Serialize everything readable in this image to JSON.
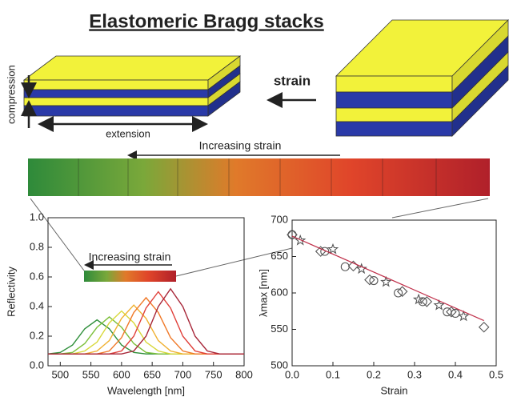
{
  "title": "Elastomeric Bragg stacks",
  "diagram": {
    "strain": "strain",
    "compression": "compression",
    "extension": "extension",
    "strip_label": "Increasing strain"
  },
  "chart_data": [
    {
      "type": "line",
      "xlabel": "Wavelength [nm]",
      "ylabel": "Reflectivity",
      "annotation": "Increasing strain",
      "x": [
        480,
        500,
        520,
        540,
        560,
        580,
        600,
        620,
        640,
        660,
        680,
        700,
        720,
        740,
        760,
        780,
        800
      ],
      "xlim": [
        480,
        800
      ],
      "xticks": [
        500,
        550,
        600,
        650,
        700,
        750,
        800
      ],
      "ylim": [
        0,
        1
      ],
      "yticks": [
        {
          "value": 0,
          "label": "0.0"
        },
        0.2,
        0.4,
        0.6,
        0.8,
        {
          "value": 1,
          "label": "1.0"
        }
      ],
      "series": [
        {
          "color": "#2f8f3a",
          "values": [
            0.08,
            0.09,
            0.14,
            0.25,
            0.31,
            0.25,
            0.14,
            0.09,
            0.08,
            0.08,
            0.08,
            0.08,
            0.08,
            0.08,
            0.08,
            0.08,
            0.08
          ]
        },
        {
          "color": "#7cbf3a",
          "values": [
            0.08,
            0.08,
            0.09,
            0.15,
            0.26,
            0.33,
            0.26,
            0.15,
            0.09,
            0.08,
            0.08,
            0.08,
            0.08,
            0.08,
            0.08,
            0.08,
            0.08
          ]
        },
        {
          "color": "#d8d83a",
          "values": [
            0.08,
            0.08,
            0.08,
            0.1,
            0.16,
            0.29,
            0.37,
            0.29,
            0.16,
            0.1,
            0.08,
            0.08,
            0.08,
            0.08,
            0.08,
            0.08,
            0.08
          ]
        },
        {
          "color": "#f0b030",
          "values": [
            0.08,
            0.08,
            0.08,
            0.08,
            0.1,
            0.17,
            0.32,
            0.41,
            0.32,
            0.17,
            0.1,
            0.08,
            0.08,
            0.08,
            0.08,
            0.08,
            0.08
          ]
        },
        {
          "color": "#f07a2a",
          "values": [
            0.08,
            0.08,
            0.08,
            0.08,
            0.08,
            0.1,
            0.19,
            0.36,
            0.46,
            0.36,
            0.19,
            0.1,
            0.08,
            0.08,
            0.08,
            0.08,
            0.08
          ]
        },
        {
          "color": "#e0403a",
          "values": [
            0.08,
            0.08,
            0.08,
            0.08,
            0.08,
            0.08,
            0.1,
            0.2,
            0.39,
            0.5,
            0.39,
            0.2,
            0.1,
            0.08,
            0.08,
            0.08,
            0.08
          ]
        },
        {
          "color": "#a8283a",
          "values": [
            0.08,
            0.08,
            0.08,
            0.08,
            0.08,
            0.08,
            0.08,
            0.1,
            0.2,
            0.4,
            0.52,
            0.4,
            0.2,
            0.1,
            0.08,
            0.08,
            0.08
          ]
        }
      ]
    },
    {
      "type": "scatter",
      "xlabel": "Strain",
      "ylabel": "λmax [nm]",
      "xlim": [
        0,
        0.5
      ],
      "xticks": [
        {
          "value": 0,
          "label": "0.0"
        },
        0.1,
        0.2,
        0.3,
        0.4,
        0.5
      ],
      "ylim": [
        500,
        700
      ],
      "yticks": [
        500,
        550,
        600,
        650,
        700
      ],
      "series": [
        {
          "marker": "circle",
          "color": "#555555",
          "x": [
            0.0,
            0.08,
            0.13,
            0.2,
            0.26,
            0.32,
            0.38,
            0.4
          ],
          "values": [
            680,
            657,
            636,
            617,
            600,
            588,
            574,
            572
          ]
        },
        {
          "marker": "star",
          "color": "#555555",
          "x": [
            0.02,
            0.1,
            0.17,
            0.23,
            0.31,
            0.36,
            0.42
          ],
          "values": [
            672,
            660,
            633,
            615,
            591,
            583,
            568
          ]
        },
        {
          "marker": "diamond",
          "color": "#555555",
          "x": [
            0.0,
            0.07,
            0.15,
            0.19,
            0.27,
            0.33,
            0.39,
            0.47
          ],
          "values": [
            680,
            657,
            637,
            618,
            602,
            588,
            574,
            553
          ]
        },
        {
          "marker": "line",
          "color": "#c0304a",
          "x": [
            0,
            0.47
          ],
          "values": [
            678,
            562
          ]
        }
      ]
    }
  ]
}
